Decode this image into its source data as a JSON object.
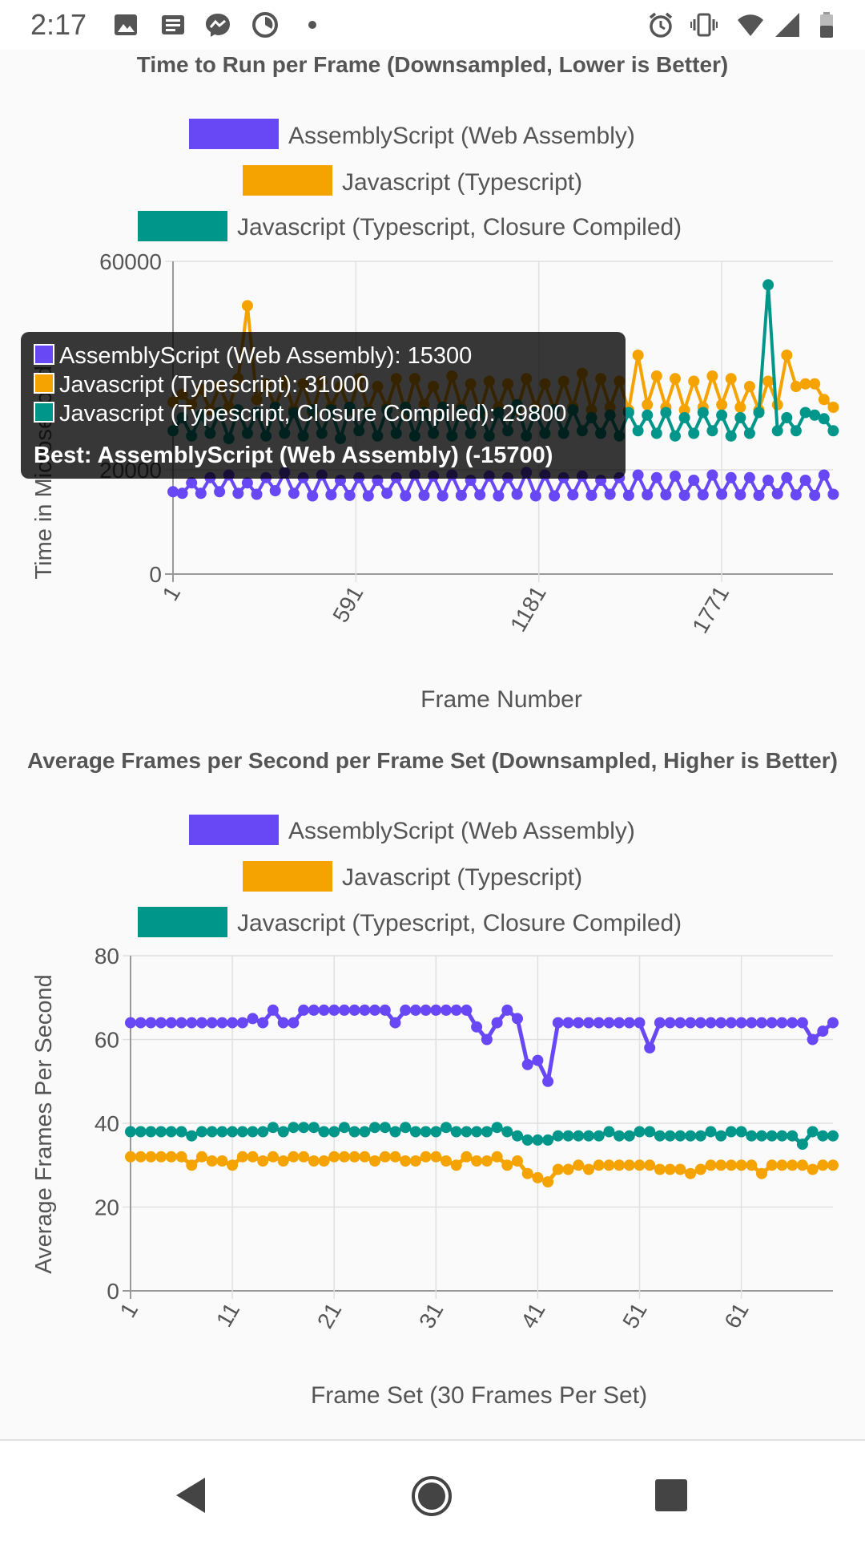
{
  "status_bar": {
    "time": "2:17",
    "left_icons": [
      "image-icon",
      "news-icon",
      "messenger-icon",
      "timer-icon",
      "dot-icon"
    ],
    "right_icons": [
      "alarm-icon",
      "vibrate-icon",
      "wifi-icon",
      "signal-icon",
      "battery-icon"
    ]
  },
  "colors": {
    "wasm": "#6847f5",
    "ts": "#f5a300",
    "closure": "#00968a",
    "grid": "#e0e0e0",
    "text": "#555555"
  },
  "legend": {
    "wasm": "AssemblyScript (Web Assembly)",
    "ts": "Javascript (Typescript)",
    "closure": "Javascript (Typescript, Closure Compiled)"
  },
  "tooltip": {
    "wasm": "AssemblyScript (Web Assembly): 15300",
    "ts": "Javascript (Typescript): 31000",
    "closure": "Javascript (Typescript, Closure Compiled): 29800",
    "best": "Best: AssemblyScript (Web Assembly) (-15700)"
  },
  "chart_data": [
    {
      "type": "line",
      "title": "Time to Run per Frame (Downsampled, Lower is Better)",
      "xlabel": "Frame Number",
      "ylabel": "Time in Microseconds",
      "ylim": [
        0,
        60000
      ],
      "yticks": [
        0,
        20000,
        60000
      ],
      "xticks": [
        "1",
        "591",
        "1181",
        "1771"
      ],
      "x_range": [
        1,
        2130
      ],
      "grid": true,
      "legend_position": "top",
      "series": [
        {
          "name": "AssemblyScript (Web Assembly)",
          "key": "wasm",
          "x": [
            1,
            31,
            61,
            91,
            121,
            151,
            181,
            211,
            241,
            271,
            301,
            331,
            361,
            391,
            421,
            451,
            481,
            511,
            541,
            571,
            601,
            631,
            661,
            691,
            721,
            751,
            781,
            811,
            841,
            871,
            901,
            931,
            961,
            991,
            1021,
            1051,
            1081,
            1111,
            1141,
            1171,
            1201,
            1231,
            1261,
            1291,
            1321,
            1351,
            1381,
            1411,
            1441,
            1471,
            1501,
            1531,
            1561,
            1591,
            1621,
            1651,
            1681,
            1711,
            1741,
            1771,
            1801,
            1831,
            1861,
            1891,
            1921,
            1951,
            1981,
            2011,
            2041,
            2071,
            2101,
            2131
          ],
          "values": [
            15800,
            15500,
            17500,
            15500,
            18500,
            15800,
            19000,
            15500,
            17500,
            15300,
            18500,
            16000,
            19500,
            15500,
            18500,
            15000,
            19000,
            15200,
            18000,
            15100,
            18500,
            15000,
            18000,
            15500,
            18500,
            15000,
            19000,
            15100,
            18800,
            15000,
            19000,
            15100,
            18000,
            15200,
            18800,
            15000,
            18500,
            15300,
            19500,
            15000,
            19000,
            15000,
            18500,
            15200,
            18800,
            15100,
            18000,
            15300,
            18500,
            15100,
            19000,
            15200,
            18500,
            15200,
            18800,
            15100,
            18000,
            15200,
            19000,
            15300,
            18500,
            15200,
            18500,
            15100,
            18000,
            15400,
            18500,
            15200,
            18000,
            15100,
            19000,
            15300
          ]
        },
        {
          "name": "Javascript (Typescript)",
          "key": "ts",
          "x": [
            1,
            31,
            61,
            91,
            121,
            151,
            181,
            211,
            241,
            271,
            301,
            331,
            361,
            391,
            421,
            451,
            481,
            511,
            541,
            571,
            601,
            631,
            661,
            691,
            721,
            751,
            781,
            811,
            841,
            871,
            901,
            931,
            961,
            991,
            1021,
            1051,
            1081,
            1111,
            1141,
            1171,
            1201,
            1231,
            1261,
            1291,
            1321,
            1351,
            1381,
            1411,
            1441,
            1471,
            1501,
            1531,
            1561,
            1591,
            1621,
            1651,
            1681,
            1711,
            1741,
            1771,
            1801,
            1831,
            1861,
            1891,
            1921,
            1951,
            1981,
            2011,
            2041,
            2071,
            2101,
            2131
          ],
          "values": [
            33000,
            34500,
            32500,
            35500,
            31500,
            36000,
            32000,
            37500,
            51500,
            33500,
            36500,
            32000,
            37000,
            31500,
            36500,
            31000,
            37000,
            32000,
            36000,
            31500,
            37500,
            31500,
            36000,
            32000,
            37500,
            31000,
            37500,
            32500,
            36000,
            31500,
            38000,
            32000,
            36500,
            31000,
            37000,
            32000,
            36500,
            31500,
            37500,
            32000,
            36500,
            31500,
            37000,
            32000,
            38500,
            31500,
            37500,
            32000,
            37000,
            31500,
            42000,
            32500,
            38000,
            32000,
            37500,
            31500,
            37000,
            32000,
            38000,
            32500,
            37500,
            32000,
            36000,
            31500,
            37000,
            32500,
            42000,
            36000,
            36500,
            36500,
            33500,
            32000
          ]
        },
        {
          "name": "Javascript (Typescript, Closure Compiled)",
          "key": "closure",
          "x": [
            1,
            31,
            61,
            91,
            121,
            151,
            181,
            211,
            241,
            271,
            301,
            331,
            361,
            391,
            421,
            451,
            481,
            511,
            541,
            571,
            601,
            631,
            661,
            691,
            721,
            751,
            781,
            811,
            841,
            871,
            901,
            931,
            961,
            991,
            1021,
            1051,
            1081,
            1111,
            1141,
            1171,
            1201,
            1231,
            1261,
            1291,
            1321,
            1351,
            1381,
            1411,
            1441,
            1471,
            1501,
            1531,
            1561,
            1591,
            1621,
            1651,
            1681,
            1711,
            1741,
            1771,
            1801,
            1831,
            1861,
            1891,
            1921,
            1951,
            1981,
            2011,
            2041,
            2071,
            2101,
            2131
          ],
          "values": [
            27500,
            30000,
            26500,
            30500,
            27000,
            31000,
            26000,
            31500,
            27000,
            31000,
            26500,
            32000,
            27000,
            31000,
            26500,
            31500,
            27000,
            31500,
            26000,
            32000,
            27500,
            31000,
            26500,
            31500,
            27000,
            32000,
            26500,
            31000,
            27000,
            32000,
            26500,
            31500,
            27000,
            31500,
            26500,
            31000,
            27500,
            32500,
            26500,
            31000,
            27000,
            31500,
            27000,
            31500,
            27500,
            30000,
            27000,
            30500,
            26500,
            31000,
            27500,
            30500,
            27000,
            31000,
            26500,
            30000,
            27000,
            31000,
            27500,
            30500,
            26500,
            30000,
            27000,
            31000,
            55500,
            27500,
            30000,
            27500,
            31000,
            30500,
            29800,
            27500
          ]
        }
      ]
    },
    {
      "type": "line",
      "title": "Average Frames per Second per Frame Set (Downsampled, Higher is Better)",
      "xlabel": "Frame Set (30 Frames Per Set)",
      "ylabel": "Average Frames Per Second",
      "ylim": [
        0,
        80
      ],
      "yticks": [
        0,
        20,
        40,
        60,
        80
      ],
      "xticks": [
        "1",
        "11",
        "21",
        "31",
        "41",
        "51",
        "61"
      ],
      "x_range": [
        1,
        70
      ],
      "grid": true,
      "legend_position": "top",
      "series": [
        {
          "name": "AssemblyScript (Web Assembly)",
          "key": "wasm",
          "x": [
            1,
            2,
            3,
            4,
            5,
            6,
            7,
            8,
            9,
            10,
            11,
            12,
            13,
            14,
            15,
            16,
            17,
            18,
            19,
            20,
            21,
            22,
            23,
            24,
            25,
            26,
            27,
            28,
            29,
            30,
            31,
            32,
            33,
            34,
            35,
            36,
            37,
            38,
            39,
            40,
            41,
            42,
            43,
            44,
            45,
            46,
            47,
            48,
            49,
            50,
            51,
            52,
            53,
            54,
            55,
            56,
            57,
            58,
            59,
            60,
            61,
            62,
            63,
            64,
            65,
            66,
            67,
            68,
            69,
            70
          ],
          "values": [
            64,
            64,
            64,
            64,
            64,
            64,
            64,
            64,
            64,
            64,
            64,
            64,
            65,
            64,
            67,
            64,
            64,
            67,
            67,
            67,
            67,
            67,
            67,
            67,
            67,
            67,
            64,
            67,
            67,
            67,
            67,
            67,
            67,
            67,
            63,
            60,
            64,
            67,
            65,
            54,
            55,
            50,
            64,
            64,
            64,
            64,
            64,
            64,
            64,
            64,
            64,
            58,
            64,
            64,
            64,
            64,
            64,
            64,
            64,
            64,
            64,
            64,
            64,
            64,
            64,
            64,
            64,
            60,
            62,
            64
          ]
        },
        {
          "name": "Javascript (Typescript)",
          "key": "ts",
          "x": [
            1,
            2,
            3,
            4,
            5,
            6,
            7,
            8,
            9,
            10,
            11,
            12,
            13,
            14,
            15,
            16,
            17,
            18,
            19,
            20,
            21,
            22,
            23,
            24,
            25,
            26,
            27,
            28,
            29,
            30,
            31,
            32,
            33,
            34,
            35,
            36,
            37,
            38,
            39,
            40,
            41,
            42,
            43,
            44,
            45,
            46,
            47,
            48,
            49,
            50,
            51,
            52,
            53,
            54,
            55,
            56,
            57,
            58,
            59,
            60,
            61,
            62,
            63,
            64,
            65,
            66,
            67,
            68,
            69,
            70
          ],
          "values": [
            32,
            32,
            32,
            32,
            32,
            32,
            30,
            32,
            31,
            31,
            30,
            32,
            32,
            31,
            32,
            31,
            32,
            32,
            31,
            31,
            32,
            32,
            32,
            32,
            31,
            32,
            32,
            31,
            31,
            32,
            32,
            31,
            30,
            32,
            31,
            31,
            32,
            30,
            31,
            28,
            27,
            26,
            29,
            29,
            30,
            29,
            30,
            30,
            30,
            30,
            30,
            30,
            29,
            29,
            29,
            28,
            29,
            30,
            30,
            30,
            30,
            30,
            28,
            30,
            30,
            30,
            30,
            29,
            30,
            30
          ]
        },
        {
          "name": "Javascript (Typescript, Closure Compiled)",
          "key": "closure",
          "x": [
            1,
            2,
            3,
            4,
            5,
            6,
            7,
            8,
            9,
            10,
            11,
            12,
            13,
            14,
            15,
            16,
            17,
            18,
            19,
            20,
            21,
            22,
            23,
            24,
            25,
            26,
            27,
            28,
            29,
            30,
            31,
            32,
            33,
            34,
            35,
            36,
            37,
            38,
            39,
            40,
            41,
            42,
            43,
            44,
            45,
            46,
            47,
            48,
            49,
            50,
            51,
            52,
            53,
            54,
            55,
            56,
            57,
            58,
            59,
            60,
            61,
            62,
            63,
            64,
            65,
            66,
            67,
            68,
            69,
            70
          ],
          "values": [
            38,
            38,
            38,
            38,
            38,
            38,
            37,
            38,
            38,
            38,
            38,
            38,
            38,
            38,
            39,
            38,
            39,
            39,
            39,
            38,
            38,
            39,
            38,
            38,
            39,
            39,
            38,
            39,
            38,
            38,
            38,
            39,
            38,
            38,
            38,
            38,
            39,
            38,
            37,
            36,
            36,
            36,
            37,
            37,
            37,
            37,
            37,
            38,
            37,
            37,
            38,
            38,
            37,
            37,
            37,
            37,
            37,
            38,
            37,
            38,
            38,
            37,
            37,
            37,
            37,
            37,
            35,
            38,
            37,
            37
          ]
        }
      ]
    }
  ]
}
